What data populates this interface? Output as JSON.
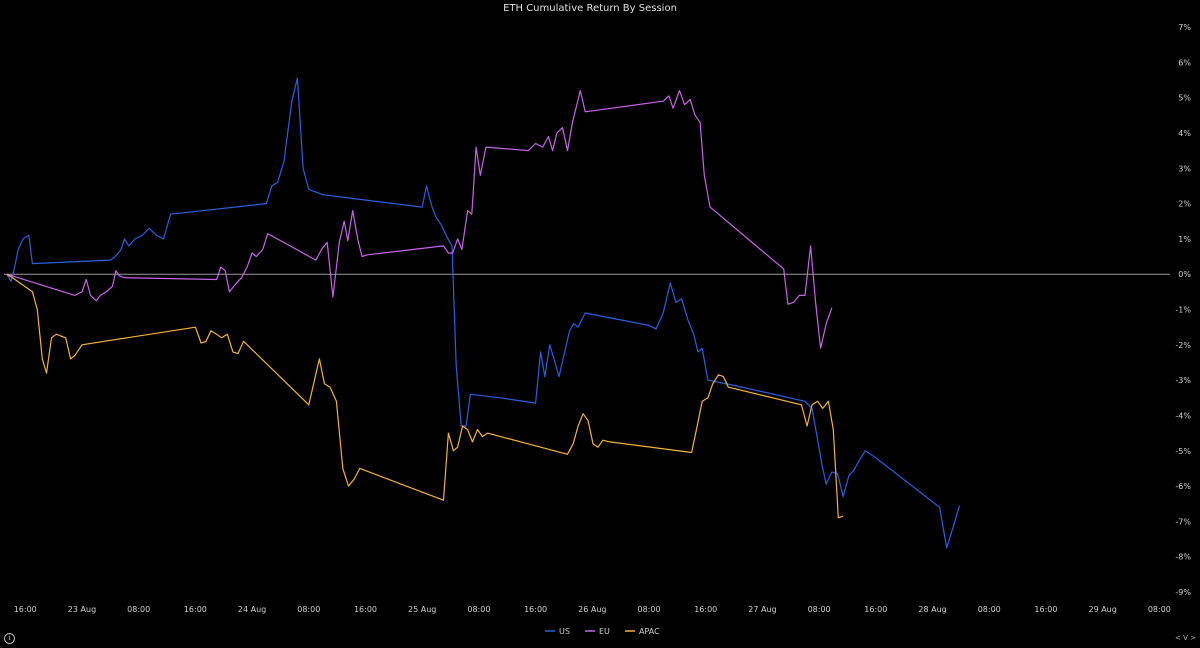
{
  "chart_data": {
    "type": "line",
    "title": "ETH Cumulative Return By Session",
    "xlabel": "",
    "ylabel": "",
    "ylim": [
      -9,
      7
    ],
    "y_axis_side": "right",
    "y_ticks": [
      7,
      6,
      5,
      4,
      3,
      2,
      1,
      0,
      -1,
      -2,
      -3,
      -4,
      -5,
      -6,
      -7,
      -8,
      -9
    ],
    "y_tick_labels": [
      "7%",
      "6%",
      "5%",
      "4%",
      "3%",
      "2%",
      "1%",
      "0%",
      "-1%",
      "-2%",
      "-3%",
      "-4%",
      "-5%",
      "-6%",
      "-7%",
      "-8%",
      "-9%"
    ],
    "x_range_hours": [
      -11,
      153.5
    ],
    "x_ticks": [
      {
        "label": "16:00",
        "h": -8
      },
      {
        "label": "23 Aug",
        "h": 0
      },
      {
        "label": "08:00",
        "h": 8
      },
      {
        "label": "16:00",
        "h": 16
      },
      {
        "label": "24 Aug",
        "h": 24
      },
      {
        "label": "08:00",
        "h": 32
      },
      {
        "label": "16:00",
        "h": 40
      },
      {
        "label": "25 Aug",
        "h": 48
      },
      {
        "label": "08:00",
        "h": 56
      },
      {
        "label": "16:00",
        "h": 64
      },
      {
        "label": "26 Aug",
        "h": 72
      },
      {
        "label": "08:00",
        "h": 80
      },
      {
        "label": "16:00",
        "h": 88
      },
      {
        "label": "27 Aug",
        "h": 96
      },
      {
        "label": "08:00",
        "h": 104
      },
      {
        "label": "16:00",
        "h": 112
      },
      {
        "label": "28 Aug",
        "h": 120
      },
      {
        "label": "08:00",
        "h": 128
      },
      {
        "label": "16:00",
        "h": 136
      },
      {
        "label": "29 Aug",
        "h": 144
      },
      {
        "label": "08:00",
        "h": 152
      }
    ],
    "zero_line": true,
    "grid": false,
    "legend_position": "bottom-center",
    "series": [
      {
        "name": "US",
        "color": "#2a5fe0",
        "points": [
          [
            -10.6,
            0
          ],
          [
            -10,
            -0.2
          ],
          [
            -9.5,
            0.2
          ],
          [
            -9,
            0.7
          ],
          [
            -8.3,
            1
          ],
          [
            -7.5,
            1.1
          ],
          [
            -7,
            0.3
          ],
          [
            4,
            0.4
          ],
          [
            4.7,
            0.5
          ],
          [
            5.5,
            0.7
          ],
          [
            6,
            1
          ],
          [
            6.6,
            0.8
          ],
          [
            7.5,
            1
          ],
          [
            8.5,
            1.1
          ],
          [
            9.5,
            1.3
          ],
          [
            10.5,
            1.1
          ],
          [
            11.5,
            1
          ],
          [
            12.5,
            1.7
          ],
          [
            26,
            2
          ],
          [
            26.8,
            2.5
          ],
          [
            27.6,
            2.6
          ],
          [
            28.5,
            3.2
          ],
          [
            29.6,
            4.9
          ],
          [
            30.4,
            5.55
          ],
          [
            31.2,
            3
          ],
          [
            32,
            2.4
          ],
          [
            34,
            2.25
          ],
          [
            36,
            2.2
          ],
          [
            48,
            1.9
          ],
          [
            48.6,
            2.5
          ],
          [
            49.4,
            1.9
          ],
          [
            50,
            1.6
          ],
          [
            50.7,
            1.4
          ],
          [
            51.5,
            1.05
          ],
          [
            52.2,
            0.8
          ],
          [
            52.8,
            -2.6
          ],
          [
            53.5,
            -4.3
          ],
          [
            54.2,
            -4.3
          ],
          [
            54.8,
            -3.4
          ],
          [
            59,
            -3.5
          ],
          [
            64,
            -3.65
          ],
          [
            64.7,
            -2.2
          ],
          [
            65.3,
            -2.9
          ],
          [
            66,
            -2
          ],
          [
            66.6,
            -2.4
          ],
          [
            67.3,
            -2.9
          ],
          [
            68.1,
            -2.2
          ],
          [
            68.8,
            -1.6
          ],
          [
            69.4,
            -1.4
          ],
          [
            70,
            -1.5
          ],
          [
            71,
            -1.1
          ],
          [
            80,
            -1.45
          ],
          [
            81,
            -1.55
          ],
          [
            82,
            -1.1
          ],
          [
            83,
            -0.25
          ],
          [
            83.8,
            -0.8
          ],
          [
            84.6,
            -0.7
          ],
          [
            85.5,
            -1.3
          ],
          [
            86.3,
            -1.7
          ],
          [
            86.9,
            -2.2
          ],
          [
            87.5,
            -2.1
          ],
          [
            88.3,
            -3
          ],
          [
            92,
            -3.15
          ],
          [
            102,
            -3.6
          ],
          [
            103,
            -3.8
          ],
          [
            103.8,
            -4.7
          ],
          [
            104.4,
            -5.4
          ],
          [
            105,
            -5.95
          ],
          [
            105.8,
            -5.6
          ],
          [
            106.6,
            -5.65
          ],
          [
            107.4,
            -6.3
          ],
          [
            108.2,
            -5.7
          ],
          [
            108.9,
            -5.55
          ],
          [
            109.6,
            -5.3
          ],
          [
            110.5,
            -5
          ],
          [
            112,
            -5.2
          ],
          [
            121,
            -6.6
          ],
          [
            122,
            -7.75
          ],
          [
            123,
            -7.1
          ],
          [
            123.8,
            -6.55
          ]
        ]
      },
      {
        "name": "EU",
        "color": "#c763e8",
        "points": [
          [
            -10.6,
            0
          ],
          [
            -1,
            -0.6
          ],
          [
            0,
            -0.5
          ],
          [
            0.6,
            -0.15
          ],
          [
            1.2,
            -0.6
          ],
          [
            2,
            -0.75
          ],
          [
            2.6,
            -0.6
          ],
          [
            3.4,
            -0.5
          ],
          [
            4.3,
            -0.35
          ],
          [
            4.8,
            0.1
          ],
          [
            5.3,
            -0.05
          ],
          [
            6,
            -0.1
          ],
          [
            19,
            -0.15
          ],
          [
            19.6,
            0.2
          ],
          [
            20.2,
            0.1
          ],
          [
            20.8,
            -0.5
          ],
          [
            21.6,
            -0.3
          ],
          [
            22.5,
            -0.1
          ],
          [
            23.3,
            0.2
          ],
          [
            24,
            0.6
          ],
          [
            24.6,
            0.5
          ],
          [
            25.5,
            0.7
          ],
          [
            26.2,
            1.15
          ],
          [
            33,
            0.4
          ],
          [
            33.8,
            0.7
          ],
          [
            34.6,
            0.9
          ],
          [
            35.4,
            -0.65
          ],
          [
            36.3,
            0.9
          ],
          [
            37,
            1.5
          ],
          [
            37.5,
            0.95
          ],
          [
            38.2,
            1.8
          ],
          [
            38.9,
            1.0
          ],
          [
            39.5,
            0.5
          ],
          [
            40.3,
            0.55
          ],
          [
            51,
            0.8
          ],
          [
            51.7,
            0.6
          ],
          [
            52.3,
            0.6
          ],
          [
            53,
            1.0
          ],
          [
            53.6,
            0.7
          ],
          [
            54.4,
            1.8
          ],
          [
            55,
            1.7
          ],
          [
            55.6,
            3.6
          ],
          [
            56.2,
            2.8
          ],
          [
            57,
            3.6
          ],
          [
            63,
            3.5
          ],
          [
            64,
            3.7
          ],
          [
            65,
            3.6
          ],
          [
            65.8,
            3.9
          ],
          [
            66.4,
            3.5
          ],
          [
            67,
            4.0
          ],
          [
            67.8,
            4.15
          ],
          [
            68.5,
            3.5
          ],
          [
            69.2,
            4.3
          ],
          [
            70.3,
            5.2
          ],
          [
            71,
            4.6
          ],
          [
            82,
            4.9
          ],
          [
            82.8,
            5.05
          ],
          [
            83.4,
            4.7
          ],
          [
            84.3,
            5.2
          ],
          [
            85,
            4.8
          ],
          [
            85.8,
            4.95
          ],
          [
            86.5,
            4.5
          ],
          [
            87.2,
            4.3
          ],
          [
            87.8,
            2.8
          ],
          [
            88.6,
            1.9
          ],
          [
            89.2,
            1.8
          ],
          [
            99,
            0.15
          ],
          [
            99.6,
            -0.85
          ],
          [
            100.4,
            -0.8
          ],
          [
            101.2,
            -0.6
          ],
          [
            102,
            -0.6
          ],
          [
            102.8,
            0.8
          ],
          [
            103.5,
            -0.8
          ],
          [
            104.2,
            -2.1
          ],
          [
            105,
            -1.4
          ],
          [
            105.8,
            -0.95
          ]
        ]
      },
      {
        "name": "APAC",
        "color": "#f2b33a",
        "points": [
          [
            -10.6,
            0
          ],
          [
            -9.8,
            -0.1
          ],
          [
            -7,
            -0.5
          ],
          [
            -6.3,
            -1
          ],
          [
            -5.6,
            -2.4
          ],
          [
            -5,
            -2.8
          ],
          [
            -4.3,
            -1.8
          ],
          [
            -3.6,
            -1.7
          ],
          [
            -3,
            -1.75
          ],
          [
            -2.3,
            -1.8
          ],
          [
            -1.6,
            -2.4
          ],
          [
            -1,
            -2.3
          ],
          [
            0,
            -2
          ],
          [
            16,
            -1.5
          ],
          [
            16.8,
            -1.95
          ],
          [
            17.5,
            -1.9
          ],
          [
            18.2,
            -1.6
          ],
          [
            19,
            -1.7
          ],
          [
            19.7,
            -1.8
          ],
          [
            20.5,
            -1.7
          ],
          [
            21.3,
            -2.2
          ],
          [
            22,
            -2.25
          ],
          [
            22.8,
            -1.9
          ],
          [
            32,
            -3.7
          ],
          [
            33.5,
            -2.4
          ],
          [
            34.2,
            -3.1
          ],
          [
            35,
            -3.2
          ],
          [
            35.9,
            -3.6
          ],
          [
            36.8,
            -5.5
          ],
          [
            37.6,
            -6
          ],
          [
            38.4,
            -5.8
          ],
          [
            39.2,
            -5.5
          ],
          [
            51,
            -6.4
          ],
          [
            51.7,
            -4.5
          ],
          [
            52.4,
            -5
          ],
          [
            53,
            -4.9
          ],
          [
            53.7,
            -4.3
          ],
          [
            54.4,
            -4.4
          ],
          [
            55.1,
            -4.75
          ],
          [
            55.8,
            -4.4
          ],
          [
            56.5,
            -4.6
          ],
          [
            57.2,
            -4.5
          ],
          [
            68.5,
            -5.1
          ],
          [
            69.3,
            -4.8
          ],
          [
            70,
            -4.3
          ],
          [
            70.7,
            -3.95
          ],
          [
            71.4,
            -4.15
          ],
          [
            72.1,
            -4.8
          ],
          [
            72.8,
            -4.9
          ],
          [
            73.5,
            -4.7
          ],
          [
            74.5,
            -4.75
          ],
          [
            86,
            -5.05
          ],
          [
            86.8,
            -4.3
          ],
          [
            87.5,
            -3.6
          ],
          [
            88.3,
            -3.5
          ],
          [
            89,
            -3.1
          ],
          [
            89.8,
            -2.85
          ],
          [
            90.5,
            -2.9
          ],
          [
            91.2,
            -3.2
          ],
          [
            101.5,
            -3.7
          ],
          [
            102.3,
            -4.3
          ],
          [
            103,
            -3.7
          ],
          [
            103.8,
            -3.6
          ],
          [
            104.5,
            -3.8
          ],
          [
            105.3,
            -3.6
          ],
          [
            106,
            -4.4
          ],
          [
            106.7,
            -6.9
          ],
          [
            107.4,
            -6.85
          ]
        ]
      }
    ]
  },
  "footer": {
    "info_icon": "info-icon",
    "nav_arrows": "< V >"
  }
}
